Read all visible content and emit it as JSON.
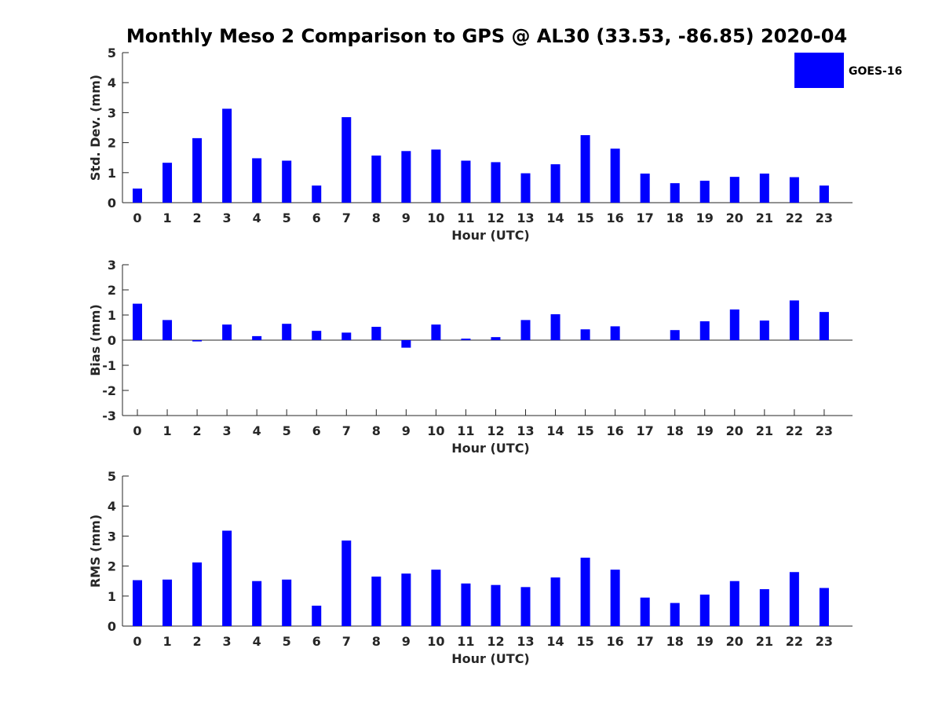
{
  "title": "Monthly Meso 2 Comparison to GPS @ AL30 (33.53, -86.85) 2020-04",
  "legend": {
    "label": "GOES-16",
    "color": "#0000ff",
    "placement": "top-right"
  },
  "chart_data": [
    {
      "type": "bar",
      "xlabel": "Hour (UTC)",
      "ylabel": "Std. Dev. (mm)",
      "ylim": [
        0,
        5
      ],
      "yticks": [
        "0",
        "1",
        "2",
        "3",
        "4",
        "5"
      ],
      "categories": [
        "0",
        "1",
        "2",
        "3",
        "4",
        "5",
        "6",
        "7",
        "8",
        "9",
        "10",
        "11",
        "12",
        "13",
        "14",
        "15",
        "16",
        "17",
        "18",
        "19",
        "20",
        "21",
        "22",
        "23"
      ],
      "series": [
        {
          "name": "GOES-16",
          "values": [
            0.47,
            1.33,
            2.15,
            3.13,
            1.48,
            1.4,
            0.57,
            2.85,
            1.57,
            1.72,
            1.77,
            1.4,
            1.35,
            0.98,
            1.28,
            2.25,
            1.8,
            0.97,
            0.65,
            0.73,
            0.86,
            0.97,
            0.85,
            0.57
          ]
        }
      ]
    },
    {
      "type": "bar",
      "xlabel": "Hour (UTC)",
      "ylabel": "Bias (mm)",
      "ylim": [
        -3,
        3
      ],
      "yticks": [
        "-3",
        "-2",
        "-1",
        "0",
        "1",
        "2",
        "3"
      ],
      "categories": [
        "0",
        "1",
        "2",
        "3",
        "4",
        "5",
        "6",
        "7",
        "8",
        "9",
        "10",
        "11",
        "12",
        "13",
        "14",
        "15",
        "16",
        "17",
        "18",
        "19",
        "20",
        "21",
        "22",
        "23"
      ],
      "series": [
        {
          "name": "GOES-16",
          "values": [
            1.45,
            0.8,
            -0.05,
            0.62,
            0.16,
            0.65,
            0.37,
            0.3,
            0.53,
            -0.3,
            0.62,
            0.06,
            0.12,
            0.8,
            1.03,
            0.43,
            0.55,
            0.0,
            0.4,
            0.75,
            1.22,
            0.78,
            1.58,
            1.12
          ]
        }
      ]
    },
    {
      "type": "bar",
      "xlabel": "Hour (UTC)",
      "ylabel": "RMS (mm)",
      "ylim": [
        0,
        5
      ],
      "yticks": [
        "0",
        "1",
        "2",
        "3",
        "4",
        "5"
      ],
      "categories": [
        "0",
        "1",
        "2",
        "3",
        "4",
        "5",
        "6",
        "7",
        "8",
        "9",
        "10",
        "11",
        "12",
        "13",
        "14",
        "15",
        "16",
        "17",
        "18",
        "19",
        "20",
        "21",
        "22",
        "23"
      ],
      "series": [
        {
          "name": "GOES-16",
          "values": [
            1.53,
            1.55,
            2.12,
            3.18,
            1.5,
            1.55,
            0.68,
            2.85,
            1.65,
            1.75,
            1.88,
            1.42,
            1.37,
            1.3,
            1.62,
            2.28,
            1.88,
            0.95,
            0.77,
            1.05,
            1.5,
            1.23,
            1.8,
            1.27
          ]
        }
      ]
    }
  ]
}
